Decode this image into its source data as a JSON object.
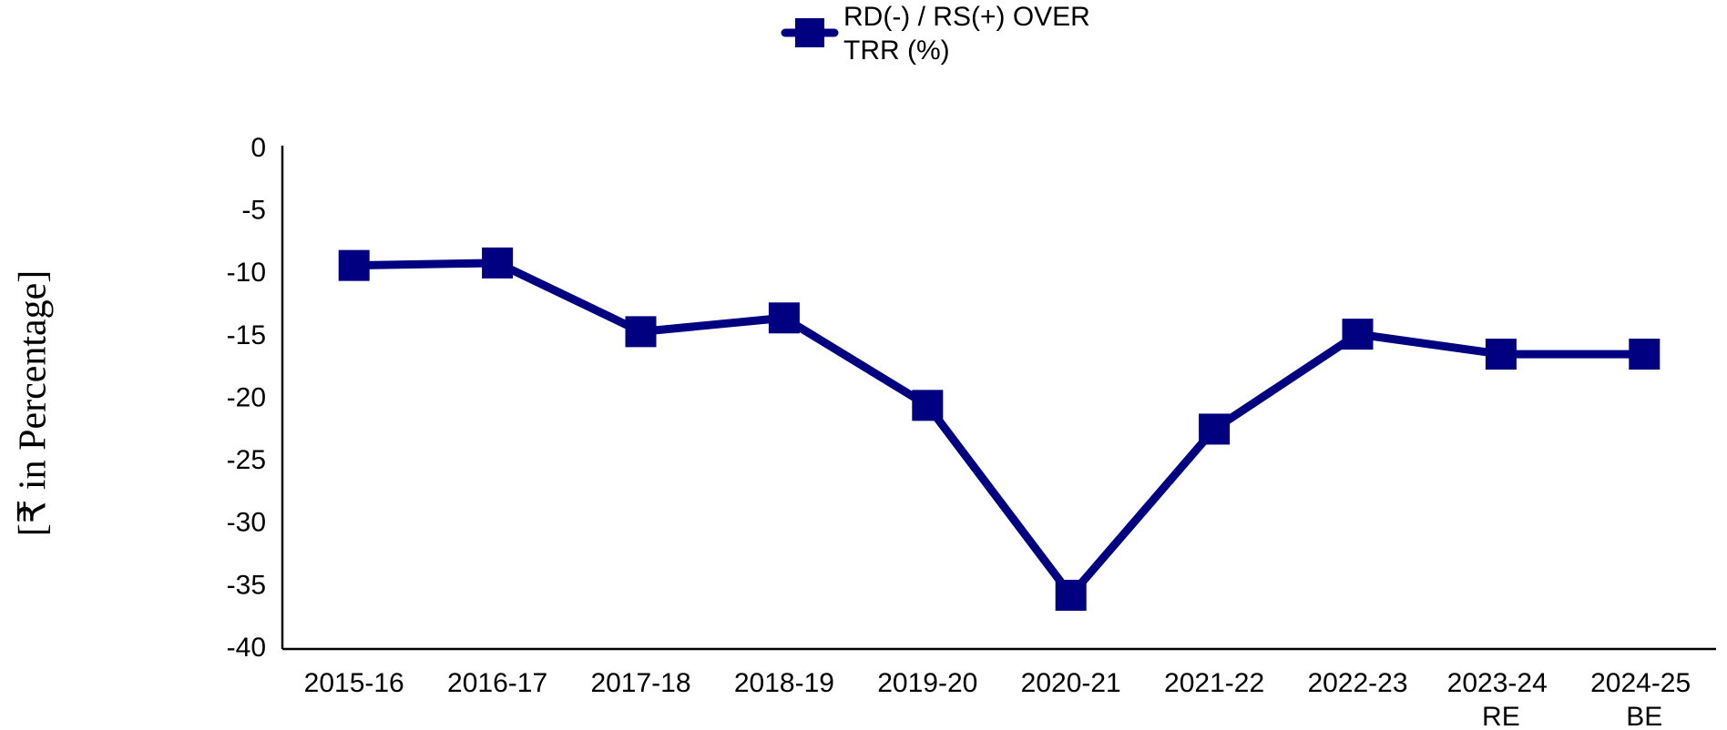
{
  "chart_data": {
    "type": "line",
    "y_label": "[₹ in Percentage]",
    "categories": [
      "2015-16",
      "2016-17",
      "2017-18",
      "2018-19",
      "2019-20",
      "2020-21",
      "2021-22",
      "2022-23",
      "2023-24 RE",
      "2024-25 BE"
    ],
    "series": [
      {
        "name": "RD(-) / RS(+) OVER TRR (%)",
        "color": "#000080",
        "values": [
          -9.3,
          -9.1,
          -14.6,
          -13.5,
          -20.5,
          -35.7,
          -22.4,
          -14.8,
          -16.4,
          -16.4
        ]
      }
    ],
    "ylim": [
      -40,
      0
    ],
    "yticks": [
      0,
      -5,
      -10,
      -15,
      -20,
      -25,
      -30,
      -35,
      -40
    ],
    "legend": "top",
    "grid": false
  }
}
